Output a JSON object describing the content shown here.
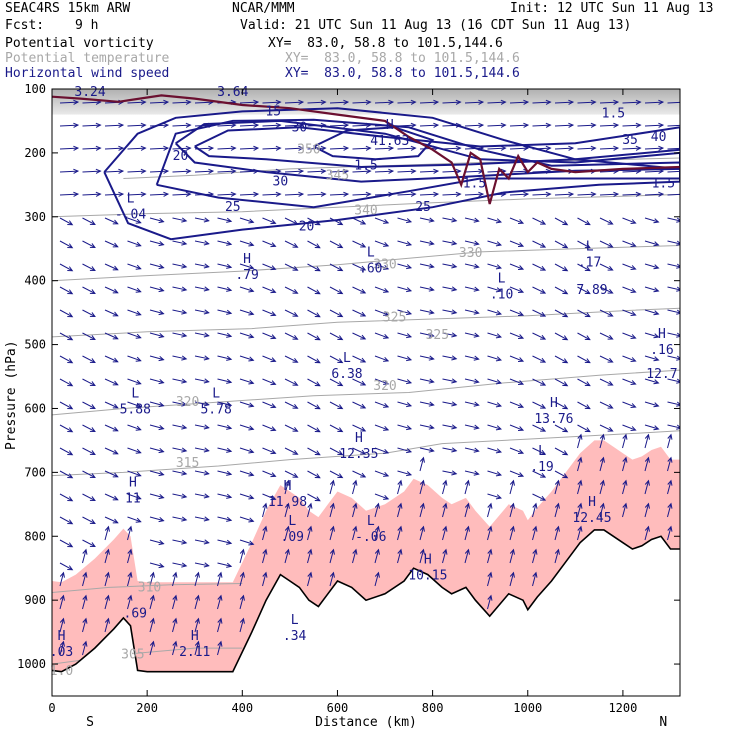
{
  "header": {
    "model": "SEAC4RS 15km ARW",
    "org": "NCAR/MMM",
    "init": "Init: 12 UTC Sun 11 Aug 13",
    "fcst_label": "Fcst:",
    "fcst_value": "9 h",
    "valid": "Valid: 21 UTC Sun 11 Aug 13 (16 CDT Sun 11 Aug 13)",
    "fields": [
      {
        "name": "Potential vorticity",
        "xy": "XY=  83.0, 58.8 to 101.5,144.6",
        "color": "#000000"
      },
      {
        "name": "Potential temperature",
        "xy": "XY=  83.0, 58.8 to 101.5,144.6",
        "color": "#a8a8a8"
      },
      {
        "name": "Horizontal wind speed",
        "xy": "XY=  83.0, 58.8 to 101.5,144.6",
        "color": "#1a1a8a"
      }
    ]
  },
  "chart_data": {
    "type": "cross-section",
    "xlabel": "Distance (km)",
    "ylabel": "Pressure (hPa)",
    "xlim": [
      0,
      1320
    ],
    "ylim": [
      1050,
      100
    ],
    "x_ticks": [
      0,
      200,
      400,
      600,
      800,
      1000,
      1200
    ],
    "y_ticks": [
      100,
      200,
      300,
      400,
      500,
      600,
      700,
      800,
      900,
      1000
    ],
    "endpoint_labels": {
      "left": "S",
      "right": "N"
    },
    "colors": {
      "terrain_fill": "#ffbcbc",
      "wind_vectors": "#1a1a8a",
      "wind_contours": "#1a1a8a",
      "theta": "#a8a8a8",
      "pv_contour": "#6b1030"
    },
    "terrain": [
      [
        0,
        1010
      ],
      [
        20,
        1012
      ],
      [
        50,
        1000
      ],
      [
        90,
        975
      ],
      [
        130,
        945
      ],
      [
        150,
        928
      ],
      [
        165,
        940
      ],
      [
        180,
        1010
      ],
      [
        200,
        1012
      ],
      [
        300,
        1012
      ],
      [
        380,
        1012
      ],
      [
        420,
        950
      ],
      [
        450,
        900
      ],
      [
        480,
        860
      ],
      [
        500,
        870
      ],
      [
        520,
        880
      ],
      [
        540,
        900
      ],
      [
        560,
        910
      ],
      [
        580,
        890
      ],
      [
        600,
        870
      ],
      [
        630,
        880
      ],
      [
        660,
        900
      ],
      [
        700,
        890
      ],
      [
        740,
        870
      ],
      [
        760,
        850
      ],
      [
        790,
        860
      ],
      [
        820,
        880
      ],
      [
        840,
        890
      ],
      [
        870,
        880
      ],
      [
        890,
        900
      ],
      [
        920,
        925
      ],
      [
        960,
        890
      ],
      [
        990,
        900
      ],
      [
        1000,
        915
      ],
      [
        1020,
        895
      ],
      [
        1050,
        870
      ],
      [
        1080,
        840
      ],
      [
        1110,
        810
      ],
      [
        1140,
        790
      ],
      [
        1160,
        790
      ],
      [
        1180,
        800
      ],
      [
        1200,
        810
      ],
      [
        1220,
        820
      ],
      [
        1240,
        815
      ],
      [
        1260,
        805
      ],
      [
        1280,
        800
      ],
      [
        1300,
        820
      ],
      [
        1320,
        820
      ]
    ],
    "theta_contours": [
      {
        "label": "305",
        "points": [
          [
            0,
            1000
          ],
          [
            150,
            985
          ],
          [
            300,
            975
          ],
          [
            400,
            975
          ]
        ]
      },
      {
        "label": "310",
        "points": [
          [
            0,
            888
          ],
          [
            120,
            880
          ],
          [
            250,
            876
          ],
          [
            400,
            874
          ]
        ]
      },
      {
        "label": "315",
        "points": [
          [
            0,
            705
          ],
          [
            150,
            700
          ],
          [
            350,
            690
          ],
          [
            500,
            680
          ],
          [
            700,
            670
          ],
          [
            820,
            655
          ],
          [
            1000,
            648
          ],
          [
            1200,
            640
          ],
          [
            1320,
            635
          ]
        ]
      },
      {
        "label": "320",
        "points": [
          [
            0,
            610
          ],
          [
            150,
            600
          ],
          [
            350,
            590
          ],
          [
            550,
            580
          ],
          [
            750,
            575
          ],
          [
            950,
            560
          ],
          [
            1150,
            548
          ],
          [
            1320,
            540
          ]
        ]
      },
      {
        "label": "325",
        "points": [
          [
            0,
            488
          ],
          [
            200,
            480
          ],
          [
            420,
            475
          ],
          [
            600,
            465
          ],
          [
            800,
            460
          ],
          [
            1000,
            455
          ],
          [
            1200,
            447
          ],
          [
            1320,
            443
          ]
        ]
      },
      {
        "label": "330",
        "points": [
          [
            0,
            400
          ],
          [
            200,
            392
          ],
          [
            400,
            385
          ],
          [
            600,
            375
          ],
          [
            750,
            365
          ],
          [
            900,
            355
          ],
          [
            1100,
            350
          ],
          [
            1320,
            345
          ]
        ]
      },
      {
        "label": "340",
        "points": [
          [
            0,
            300
          ],
          [
            200,
            295
          ],
          [
            400,
            292
          ],
          [
            600,
            285
          ],
          [
            800,
            278
          ],
          [
            1000,
            272
          ],
          [
            1200,
            268
          ],
          [
            1320,
            265
          ]
        ]
      },
      {
        "label": "345",
        "points": [
          [
            150,
            240
          ],
          [
            300,
            235
          ],
          [
            500,
            225
          ],
          [
            700,
            220
          ],
          [
            900,
            215
          ],
          [
            1100,
            212
          ],
          [
            1320,
            208
          ]
        ]
      }
    ],
    "wind_speed_contours": [
      {
        "label": "20",
        "points": [
          [
            110,
            230
          ],
          [
            180,
            170
          ],
          [
            260,
            145
          ],
          [
            400,
            135
          ],
          [
            600,
            130
          ],
          [
            800,
            145
          ],
          [
            950,
            180
          ],
          [
            1100,
            210
          ],
          [
            1320,
            225
          ],
          [
            1320,
            245
          ],
          [
            1150,
            250
          ],
          [
            950,
            262
          ],
          [
            800,
            285
          ],
          [
            600,
            305
          ],
          [
            400,
            320
          ],
          [
            250,
            335
          ],
          [
            160,
            310
          ],
          [
            110,
            230
          ]
        ]
      },
      {
        "label": "25",
        "points": [
          [
            220,
            250
          ],
          [
            260,
            170
          ],
          [
            380,
            150
          ],
          [
            550,
            148
          ],
          [
            750,
            160
          ],
          [
            900,
            195
          ],
          [
            1050,
            220
          ],
          [
            1320,
            215
          ],
          [
            1320,
            240
          ],
          [
            1100,
            240
          ],
          [
            900,
            240
          ],
          [
            750,
            260
          ],
          [
            550,
            285
          ],
          [
            350,
            270
          ],
          [
            220,
            250
          ]
        ]
      },
      {
        "label": "30",
        "points": [
          [
            260,
            185
          ],
          [
            320,
            155
          ],
          [
            480,
            150
          ],
          [
            700,
            170
          ],
          [
            900,
            210
          ],
          [
            1100,
            215
          ],
          [
            1320,
            200
          ],
          [
            1320,
            225
          ],
          [
            1100,
            228
          ],
          [
            850,
            238
          ],
          [
            650,
            245
          ],
          [
            450,
            230
          ],
          [
            300,
            215
          ],
          [
            260,
            185
          ]
        ]
      },
      {
        "label": "35",
        "points": [
          [
            300,
            190
          ],
          [
            370,
            165
          ],
          [
            520,
            160
          ],
          [
            700,
            175
          ],
          [
            900,
            190
          ],
          [
            1100,
            185
          ],
          [
            1320,
            160
          ],
          [
            1320,
            195
          ],
          [
            1100,
            210
          ],
          [
            880,
            218
          ],
          [
            650,
            222
          ],
          [
            450,
            210
          ],
          [
            330,
            205
          ],
          [
            300,
            190
          ]
        ]
      },
      {
        "label": "",
        "points": [
          [
            550,
            190
          ],
          [
            620,
            165
          ],
          [
            720,
            160
          ],
          [
            800,
            180
          ],
          [
            770,
            205
          ],
          [
            680,
            210
          ],
          [
            590,
            205
          ],
          [
            550,
            190
          ]
        ]
      }
    ],
    "pv_contour": [
      [
        0,
        112
      ],
      [
        60,
        115
      ],
      [
        140,
        120
      ],
      [
        230,
        110
      ],
      [
        300,
        115
      ],
      [
        400,
        125
      ],
      [
        500,
        130
      ],
      [
        600,
        140
      ],
      [
        700,
        150
      ],
      [
        750,
        175
      ],
      [
        800,
        195
      ],
      [
        840,
        215
      ],
      [
        860,
        250
      ],
      [
        880,
        200
      ],
      [
        900,
        210
      ],
      [
        920,
        280
      ],
      [
        940,
        225
      ],
      [
        960,
        240
      ],
      [
        980,
        205
      ],
      [
        1000,
        230
      ],
      [
        1020,
        215
      ],
      [
        1050,
        225
      ],
      [
        1100,
        230
      ],
      [
        1200,
        225
      ],
      [
        1320,
        222
      ]
    ],
    "pv_labels": [
      {
        "text": "3.24",
        "x": 80,
        "p": 105
      },
      {
        "text": "3.64",
        "x": 380,
        "p": 105
      },
      {
        "text": "1.5",
        "x": 1180,
        "p": 138
      },
      {
        "text": "1.5",
        "x": 888,
        "p": 248
      },
      {
        "text": "1.5",
        "x": 1285,
        "p": 248
      },
      {
        "text": "1.5",
        "x": 660,
        "p": 220
      }
    ],
    "wind_labels": [
      {
        "text": "20",
        "x": 270,
        "p": 205
      },
      {
        "text": "20",
        "x": 535,
        "p": 315
      },
      {
        "text": "25",
        "x": 380,
        "p": 285
      },
      {
        "text": "25",
        "x": 780,
        "p": 285
      },
      {
        "text": "30",
        "x": 520,
        "p": 160
      },
      {
        "text": "30",
        "x": 480,
        "p": 245
      },
      {
        "text": "35",
        "x": 1215,
        "p": 180
      },
      {
        "text": "40",
        "x": 1275,
        "p": 175
      },
      {
        "text": "15",
        "x": 465,
        "p": 135
      }
    ],
    "theta_labels": [
      {
        "text": "305",
        "x": 170,
        "p": 985
      },
      {
        "text": "310",
        "x": 205,
        "p": 880
      },
      {
        "text": "315",
        "x": 285,
        "p": 685
      },
      {
        "text": "320",
        "x": 285,
        "p": 590
      },
      {
        "text": "320",
        "x": 700,
        "p": 565
      },
      {
        "text": "325",
        "x": 720,
        "p": 458
      },
      {
        "text": "325",
        "x": 810,
        "p": 485
      },
      {
        "text": "330",
        "x": 700,
        "p": 375
      },
      {
        "text": "330",
        "x": 880,
        "p": 357
      },
      {
        "text": "340",
        "x": 660,
        "p": 290
      },
      {
        "text": "345",
        "x": 600,
        "p": 235
      },
      {
        "text": "350",
        "x": 540,
        "p": 195
      }
    ],
    "extrema": [
      {
        "kind": "H",
        "value": "41.63",
        "x": 710,
        "p": 175,
        "color": "#1a1a8a"
      },
      {
        "kind": "L",
        "value": "-.04",
        "x": 165,
        "p": 290,
        "color": "#1a1a8a"
      },
      {
        "kind": "H",
        "value": ".79",
        "x": 410,
        "p": 385,
        "color": "#1a1a8a"
      },
      {
        "kind": "L",
        "value": ".60",
        "x": 670,
        "p": 375,
        "color": "#1a1a8a"
      },
      {
        "kind": "L",
        "value": ".10",
        "x": 945,
        "p": 415,
        "color": "#1a1a8a"
      },
      {
        "kind": "L",
        "value": ".17",
        "x": 1130,
        "p": 365,
        "color": "#1a1a8a"
      },
      {
        "kind": "",
        "value": "7.89",
        "x": 1135,
        "p": 408,
        "color": "#1a1a8a"
      },
      {
        "kind": "H",
        "value": ".16",
        "x": 1282,
        "p": 502,
        "color": "#1a1a8a"
      },
      {
        "kind": "",
        "value": "12.7",
        "x": 1282,
        "p": 540,
        "color": "#1a1a8a"
      },
      {
        "kind": "L",
        "value": "6.38",
        "x": 620,
        "p": 540,
        "color": "#1a1a8a"
      },
      {
        "kind": "L",
        "value": "5.88",
        "x": 175,
        "p": 595,
        "color": "#1a1a8a"
      },
      {
        "kind": "L",
        "value": "5.78",
        "x": 345,
        "p": 595,
        "color": "#1a1a8a"
      },
      {
        "kind": "H",
        "value": "13.76",
        "x": 1055,
        "p": 610,
        "color": "#1a1a8a"
      },
      {
        "kind": "H",
        "value": "12.35",
        "x": 645,
        "p": 665,
        "color": "#1a1a8a"
      },
      {
        "kind": "L",
        "value": ".19",
        "x": 1030,
        "p": 685,
        "color": "#1a1a8a"
      },
      {
        "kind": "H",
        "value": "11",
        "x": 170,
        "p": 735,
        "color": "#1a1a8a"
      },
      {
        "kind": "H",
        "value": "11.98",
        "x": 495,
        "p": 740,
        "color": "#1a1a8a"
      },
      {
        "kind": "H",
        "value": "12.45",
        "x": 1135,
        "p": 765,
        "color": "#1a1a8a"
      },
      {
        "kind": "L",
        "value": ".09",
        "x": 505,
        "p": 795,
        "color": "#1a1a8a"
      },
      {
        "kind": "L",
        "value": "-.06",
        "x": 670,
        "p": 795,
        "color": "#1a1a8a"
      },
      {
        "kind": "H",
        "value": "10.15",
        "x": 790,
        "p": 855,
        "color": "#1a1a8a"
      },
      {
        "kind": "",
        "value": ".69",
        "x": 175,
        "p": 915,
        "color": "#1a1a8a"
      },
      {
        "kind": "L",
        "value": ".34",
        "x": 510,
        "p": 950,
        "color": "#1a1a8a"
      },
      {
        "kind": "H",
        "value": "2.11",
        "x": 300,
        "p": 975,
        "color": "#1a1a8a"
      },
      {
        "kind": "H",
        "value": ".03",
        "x": 20,
        "p": 975,
        "color": "#1a1a8a"
      },
      {
        "kind": "",
        "value": "1.0",
        "x": 20,
        "p": 1005,
        "color": "#a8a8a8"
      }
    ]
  }
}
